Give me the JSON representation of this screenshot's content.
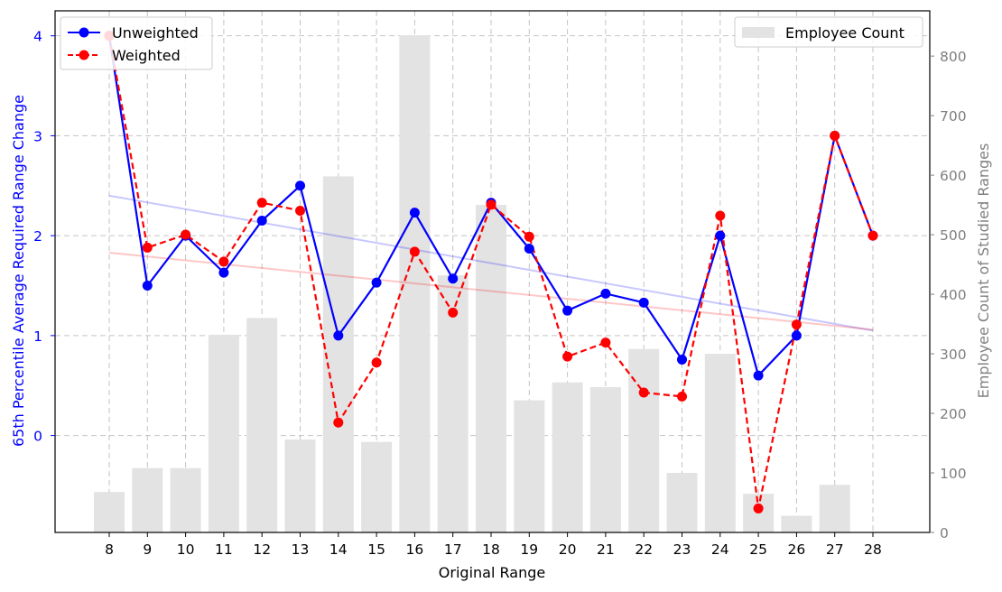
{
  "chart_data": {
    "type": "bar+line",
    "title": "",
    "xlabel": "Original Range",
    "ylabel_left": "65th Percentile Average Required Range Change",
    "ylabel_right": "Employee Count of Studied Ranges",
    "categories": [
      8,
      9,
      10,
      11,
      12,
      13,
      14,
      15,
      16,
      17,
      18,
      19,
      20,
      21,
      22,
      23,
      24,
      25,
      26,
      27,
      28
    ],
    "ylim_left": [
      -0.97,
      4.25
    ],
    "yticks_left": [
      0,
      1,
      2,
      3,
      4
    ],
    "ylim_right": [
      0,
      876
    ],
    "yticks_right": [
      0,
      100,
      200,
      300,
      400,
      500,
      600,
      700,
      800
    ],
    "grid": true,
    "series": [
      {
        "name": "Unweighted",
        "axis": "left",
        "kind": "line",
        "style": "solid",
        "color": "#0000ff",
        "values": [
          4.0,
          1.5,
          2.0,
          1.63,
          2.15,
          2.5,
          1.0,
          1.53,
          2.23,
          1.57,
          2.33,
          1.87,
          1.25,
          1.42,
          1.33,
          0.76,
          2.0,
          0.6,
          1.0,
          3.0,
          2.0
        ]
      },
      {
        "name": "Weighted",
        "axis": "left",
        "kind": "line",
        "style": "dashed",
        "color": "#ff0000",
        "values": [
          4.0,
          1.88,
          2.01,
          1.74,
          2.33,
          2.25,
          0.13,
          0.73,
          1.84,
          1.23,
          2.31,
          1.99,
          0.79,
          0.93,
          0.43,
          0.39,
          2.2,
          -0.73,
          1.11,
          3.0,
          2.0
        ]
      },
      {
        "name": "Employee Count",
        "axis": "right",
        "kind": "bar",
        "color": "#e3e3e3",
        "values": [
          68,
          108,
          108,
          332,
          360,
          156,
          598,
          152,
          835,
          432,
          550,
          222,
          252,
          244,
          308,
          100,
          300,
          65,
          28,
          80,
          0
        ]
      }
    ],
    "trendlines": [
      {
        "of": "Unweighted",
        "color": "#0000ff",
        "start": {
          "x": 8,
          "y": 2.4
        },
        "end": {
          "x": 28,
          "y": 1.05
        }
      },
      {
        "of": "Weighted",
        "color": "#ff0000",
        "start": {
          "x": 8,
          "y": 1.83
        },
        "end": {
          "x": 28,
          "y": 1.06
        }
      }
    ],
    "legends": [
      {
        "position": "top-left",
        "entries": [
          "Unweighted",
          "Weighted"
        ]
      },
      {
        "position": "top-right",
        "entries": [
          "Employee Count"
        ]
      }
    ]
  }
}
